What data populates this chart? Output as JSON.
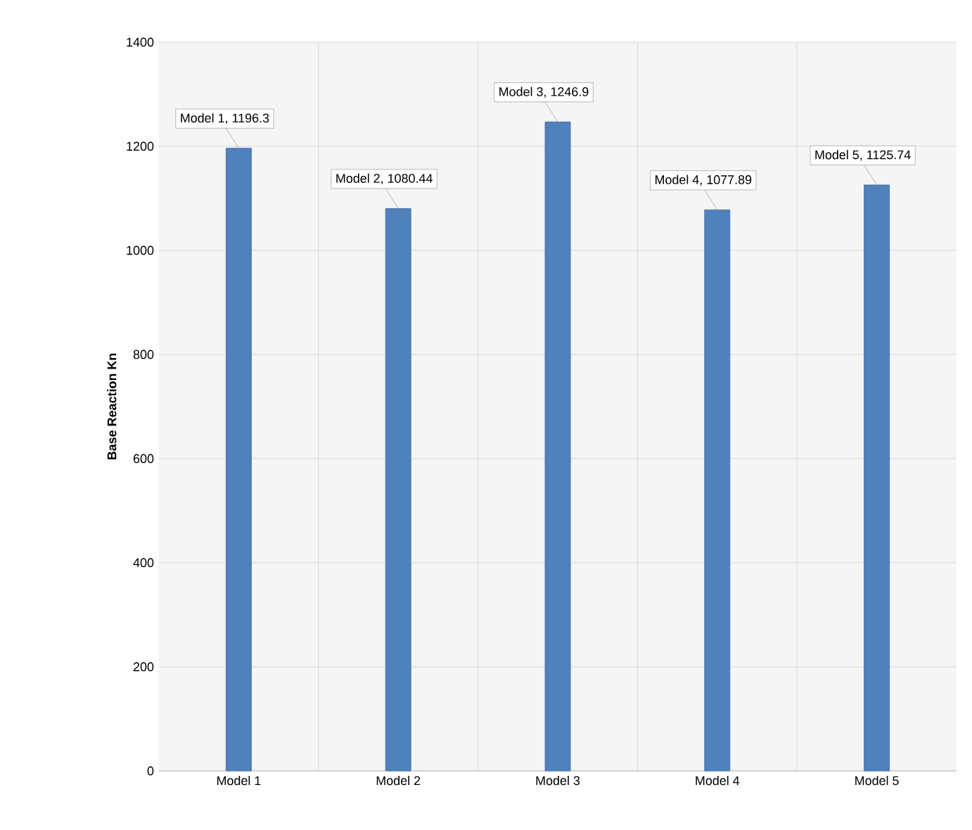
{
  "chart_data": {
    "type": "bar",
    "ylabel": "Base Reaction Kn",
    "categories": [
      "Model 1",
      "Model 2",
      "Model 3",
      "Model 4",
      "Model 5"
    ],
    "values": [
      1196.3,
      1080.44,
      1246.9,
      1077.89,
      1125.74
    ],
    "value_labels": [
      "Model 1, 1196.3",
      "Model 2, 1080.44",
      "Model 3, 1246.9",
      "Model 4, 1077.89",
      "Model 5, 1125.74"
    ],
    "color": "#4f81bd",
    "ylim": [
      0,
      1400
    ],
    "yticks": [
      0,
      200,
      400,
      600,
      800,
      1000,
      1200,
      1400
    ],
    "grid": true
  }
}
